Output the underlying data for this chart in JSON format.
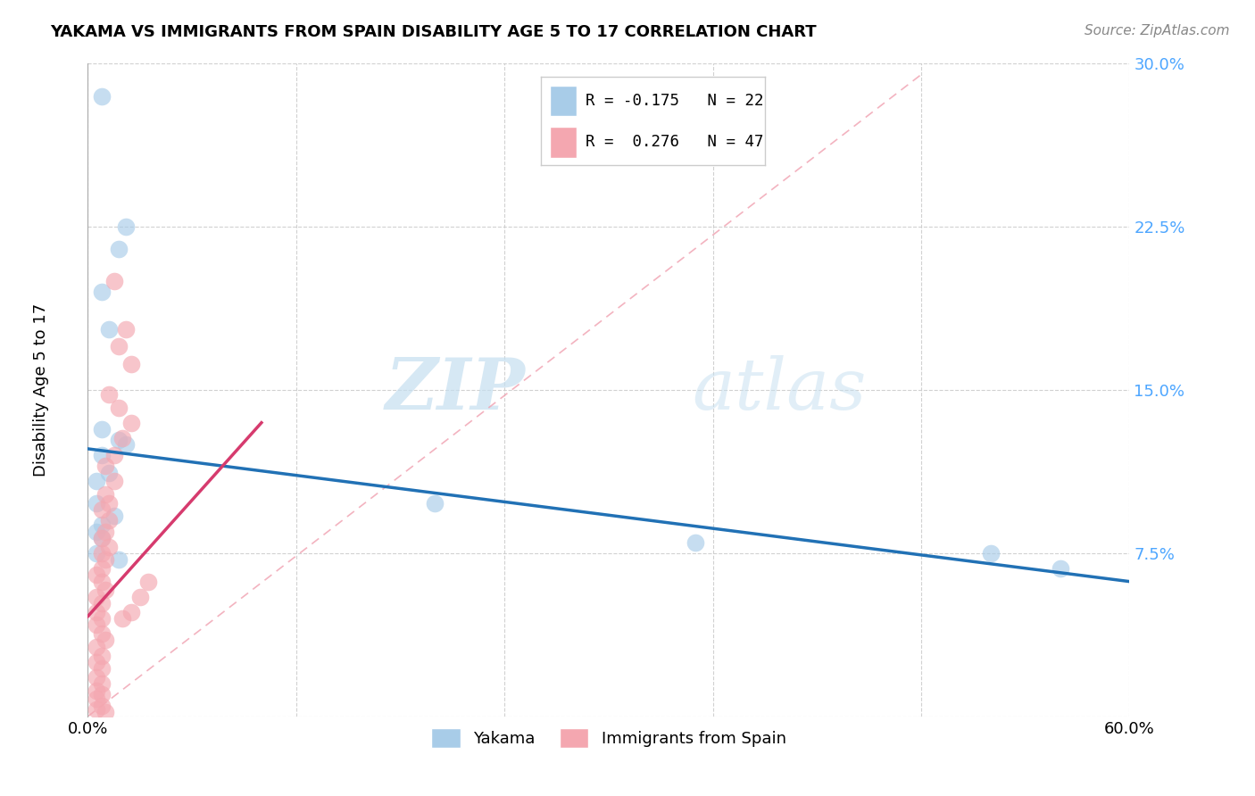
{
  "title": "YAKAMA VS IMMIGRANTS FROM SPAIN DISABILITY AGE 5 TO 17 CORRELATION CHART",
  "source_text": "Source: ZipAtlas.com",
  "ylabel": "Disability Age 5 to 17",
  "xlim": [
    0.0,
    0.6
  ],
  "ylim": [
    0.0,
    0.3
  ],
  "xticks": [
    0.0,
    0.12,
    0.24,
    0.36,
    0.48,
    0.6
  ],
  "xticklabels": [
    "0.0%",
    "",
    "",
    "",
    "",
    "60.0%"
  ],
  "yticks": [
    0.0,
    0.075,
    0.15,
    0.225,
    0.3
  ],
  "yticklabels": [
    "",
    "7.5%",
    "15.0%",
    "22.5%",
    "30.0%"
  ],
  "legend_blue_r": "-0.175",
  "legend_blue_n": "22",
  "legend_pink_r": "0.276",
  "legend_pink_n": "47",
  "blue_color": "#a8cce8",
  "pink_color": "#f4a7b0",
  "blue_line_color": "#2171b5",
  "pink_line_color": "#d63b6e",
  "diag_line_color": "#f0a0b0",
  "watermark_zip": "ZIP",
  "watermark_atlas": "atlas",
  "yakama_points": [
    [
      0.008,
      0.285
    ],
    [
      0.018,
      0.215
    ],
    [
      0.022,
      0.225
    ],
    [
      0.008,
      0.195
    ],
    [
      0.012,
      0.178
    ],
    [
      0.008,
      0.132
    ],
    [
      0.018,
      0.127
    ],
    [
      0.008,
      0.12
    ],
    [
      0.012,
      0.112
    ],
    [
      0.005,
      0.108
    ],
    [
      0.022,
      0.125
    ],
    [
      0.005,
      0.098
    ],
    [
      0.015,
      0.092
    ],
    [
      0.008,
      0.088
    ],
    [
      0.005,
      0.085
    ],
    [
      0.008,
      0.082
    ],
    [
      0.005,
      0.075
    ],
    [
      0.018,
      0.072
    ],
    [
      0.2,
      0.098
    ],
    [
      0.35,
      0.08
    ],
    [
      0.52,
      0.075
    ],
    [
      0.56,
      0.068
    ]
  ],
  "spain_points": [
    [
      0.015,
      0.2
    ],
    [
      0.022,
      0.178
    ],
    [
      0.018,
      0.17
    ],
    [
      0.025,
      0.162
    ],
    [
      0.012,
      0.148
    ],
    [
      0.018,
      0.142
    ],
    [
      0.025,
      0.135
    ],
    [
      0.02,
      0.128
    ],
    [
      0.015,
      0.12
    ],
    [
      0.01,
      0.115
    ],
    [
      0.015,
      0.108
    ],
    [
      0.01,
      0.102
    ],
    [
      0.012,
      0.098
    ],
    [
      0.008,
      0.095
    ],
    [
      0.012,
      0.09
    ],
    [
      0.01,
      0.085
    ],
    [
      0.008,
      0.082
    ],
    [
      0.012,
      0.078
    ],
    [
      0.008,
      0.075
    ],
    [
      0.01,
      0.072
    ],
    [
      0.008,
      0.068
    ],
    [
      0.005,
      0.065
    ],
    [
      0.008,
      0.062
    ],
    [
      0.01,
      0.058
    ],
    [
      0.005,
      0.055
    ],
    [
      0.008,
      0.052
    ],
    [
      0.005,
      0.048
    ],
    [
      0.008,
      0.045
    ],
    [
      0.005,
      0.042
    ],
    [
      0.008,
      0.038
    ],
    [
      0.01,
      0.035
    ],
    [
      0.005,
      0.032
    ],
    [
      0.008,
      0.028
    ],
    [
      0.005,
      0.025
    ],
    [
      0.008,
      0.022
    ],
    [
      0.005,
      0.018
    ],
    [
      0.008,
      0.015
    ],
    [
      0.005,
      0.012
    ],
    [
      0.008,
      0.01
    ],
    [
      0.005,
      0.008
    ],
    [
      0.008,
      0.005
    ],
    [
      0.005,
      0.003
    ],
    [
      0.01,
      0.002
    ],
    [
      0.025,
      0.048
    ],
    [
      0.03,
      0.055
    ],
    [
      0.035,
      0.062
    ],
    [
      0.02,
      0.045
    ]
  ],
  "blue_line_x0": 0.0,
  "blue_line_y0": 0.123,
  "blue_line_x1": 0.6,
  "blue_line_y1": 0.062,
  "pink_line_x0": 0.0,
  "pink_line_y0": 0.046,
  "pink_line_x1": 0.1,
  "pink_line_y1": 0.135
}
